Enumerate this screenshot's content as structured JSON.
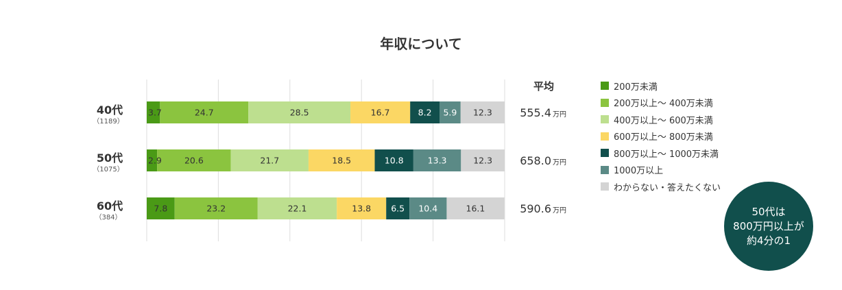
{
  "chart_data": {
    "type": "bar",
    "stacked": true,
    "orientation": "horizontal",
    "title": "年収について",
    "categories": [
      {
        "label": "40代",
        "n": "（1189）"
      },
      {
        "label": "50代",
        "n": "（1075）"
      },
      {
        "label": "60代",
        "n": "（384）"
      }
    ],
    "series": [
      {
        "name": "200万未満",
        "color": "#4a9a16",
        "label_color": "#333333",
        "values": [
          3.7,
          2.9,
          7.8
        ]
      },
      {
        "name": "200万以上～ 400万未満",
        "color": "#8bc43f",
        "label_color": "#333333",
        "values": [
          24.7,
          20.6,
          23.2
        ]
      },
      {
        "name": "400万以上～ 600万未満",
        "color": "#bddf8f",
        "label_color": "#333333",
        "values": [
          28.5,
          21.7,
          22.1
        ]
      },
      {
        "name": "600万以上～ 800万未満",
        "color": "#fbd764",
        "label_color": "#333333",
        "values": [
          16.7,
          18.5,
          13.8
        ]
      },
      {
        "name": "800万以上～ 1000万未満",
        "color": "#114f4c",
        "label_color": "#ffffff",
        "values": [
          8.2,
          10.8,
          6.5
        ]
      },
      {
        "name": "1000万以上",
        "color": "#5b8a86",
        "label_color": "#ffffff",
        "values": [
          5.9,
          13.3,
          10.4
        ]
      },
      {
        "name": "わからない・答えたくない",
        "color": "#d4d4d4",
        "label_color": "#333333",
        "values": [
          12.3,
          12.3,
          16.1
        ]
      }
    ],
    "xlim": [
      0,
      100
    ],
    "grid": true,
    "legend_position": "right",
    "average": {
      "header": "平均",
      "values": [
        "555.4",
        "658.0",
        "590.6"
      ],
      "unit": "万円"
    }
  },
  "callout": {
    "lines": [
      "50代は",
      "800万円以上が",
      "約4分の1"
    ],
    "color": "#114f4c"
  }
}
